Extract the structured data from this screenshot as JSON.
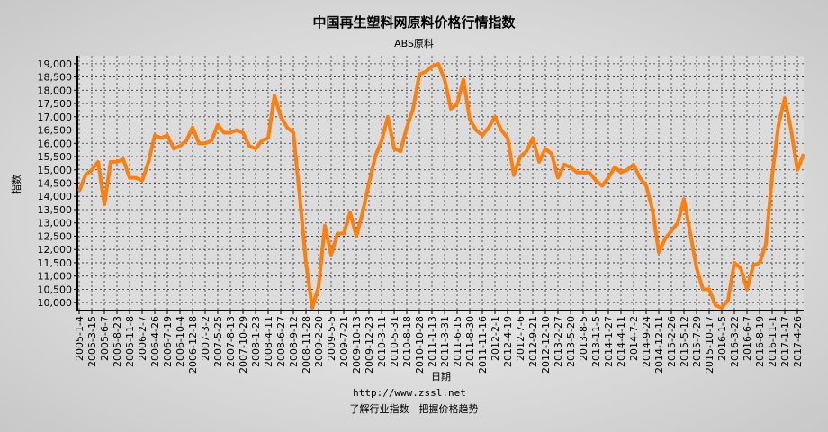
{
  "chart_data": {
    "type": "line",
    "title": "中国再生塑料网原料价格行情指数",
    "subtitle": "ABS原料",
    "y_label": "指数",
    "x_label": "日期",
    "footer_url": "http://www.zssl.net",
    "footer_slogan": "了解行业指数　把握价格趋势",
    "categories": [
      "2005-1-4",
      null,
      "2005-3-15",
      null,
      "2005-6-7",
      null,
      "2005-8-23",
      null,
      "2005-11-8",
      null,
      "2006-2-7",
      null,
      "2006-4-26",
      null,
      "2006-7-19",
      null,
      "2006-10-4",
      null,
      "2006-12-18",
      null,
      "2007-3-2",
      null,
      "2007-5-25",
      null,
      "2007-8-13",
      null,
      "2007-10-29",
      null,
      "2008-1-23",
      null,
      "2008-4-11",
      null,
      "2008-6-27",
      null,
      "2008-9-12",
      null,
      "2008-11-28",
      null,
      "2009-2-20",
      null,
      "2009-5-5",
      null,
      "2009-7-21",
      null,
      "2009-10-13",
      null,
      "2009-12-23",
      null,
      "2010-3-11",
      null,
      "2010-5-31",
      null,
      "2010-8-18",
      null,
      "2010-10-28",
      null,
      "2011-1-13",
      null,
      "2011-3-31",
      null,
      "2011-6-15",
      null,
      "2011-8-30",
      null,
      "2011-11-16",
      null,
      "2012-2-1",
      null,
      "2012-4-19",
      null,
      "2012-7-6",
      null,
      "2012-9-21",
      null,
      "2012-12-10",
      null,
      "2013-2-27",
      null,
      "2013-5-20",
      null,
      "2013-8-5",
      null,
      "2013-11-5",
      null,
      "2014-1-27",
      null,
      "2014-4-11",
      null,
      "2014-7-2",
      null,
      "2014-9-24",
      null,
      "2014-12-11",
      null,
      "2015-2-26",
      null,
      "2015-5-12",
      null,
      "2015-7-29",
      null,
      "2015-10-17",
      null,
      "2016-1-5",
      null,
      "2016-3-22",
      null,
      "2016-6-7",
      null,
      "2016-8-19",
      null,
      "2016-11-1",
      null,
      "2017-1-17",
      null,
      "2017-4-26",
      null
    ],
    "series": [
      {
        "name": "ABS原料",
        "color": "#ff7f0e",
        "values": [
          14200,
          14800,
          15000,
          15300,
          13700,
          15300,
          15300,
          15400,
          14700,
          14700,
          14600,
          15300,
          16300,
          16200,
          16300,
          15800,
          15900,
          16100,
          16600,
          16000,
          16000,
          16100,
          16700,
          16400,
          16400,
          16500,
          16400,
          15900,
          15800,
          16100,
          16200,
          17800,
          17000,
          16600,
          16400,
          14000,
          11500,
          9800,
          10600,
          12900,
          11800,
          12600,
          12600,
          13400,
          12500,
          13400,
          14500,
          15500,
          16100,
          17000,
          15800,
          15700,
          16600,
          17300,
          18600,
          18700,
          18900,
          19000,
          18400,
          17300,
          17500,
          18400,
          16900,
          16500,
          16300,
          16600,
          17000,
          16500,
          16200,
          14800,
          15500,
          15700,
          16200,
          15300,
          15800,
          15600,
          14700,
          15200,
          15100,
          14900,
          14900,
          14900,
          14600,
          14400,
          14700,
          15100,
          14900,
          15000,
          15200,
          14700,
          14400,
          13500,
          11900,
          12400,
          12700,
          13000,
          13900,
          12600,
          11300,
          10500,
          10500,
          9900,
          9800,
          10100,
          11500,
          11300,
          10500,
          11400,
          11500,
          12200,
          14800,
          16700,
          17700,
          16500,
          15000,
          15600
        ]
      }
    ],
    "ylim": [
      9700,
      19300
    ],
    "yticks": [
      {
        "value": 10000,
        "label": "10,000"
      },
      {
        "value": 10500,
        "label": "10,500"
      },
      {
        "value": 11000,
        "label": "11,000"
      },
      {
        "value": 11500,
        "label": "11,500"
      },
      {
        "value": 12000,
        "label": "12,000"
      },
      {
        "value": 12500,
        "label": "12,500"
      },
      {
        "value": 13000,
        "label": "13,000"
      },
      {
        "value": 13500,
        "label": "13,500"
      },
      {
        "value": 14000,
        "label": "14,000"
      },
      {
        "value": 14500,
        "label": "14,500"
      },
      {
        "value": 15000,
        "label": "15,000"
      },
      {
        "value": 15500,
        "label": "15,500"
      },
      {
        "value": 16000,
        "label": "16,000"
      },
      {
        "value": 16500,
        "label": "16,500"
      },
      {
        "value": 17000,
        "label": "17,000"
      },
      {
        "value": 17500,
        "label": "17,500"
      },
      {
        "value": 18000,
        "label": "18,000"
      },
      {
        "value": 18500,
        "label": "18,500"
      },
      {
        "value": 19000,
        "label": "19,000"
      }
    ],
    "grid": true
  }
}
